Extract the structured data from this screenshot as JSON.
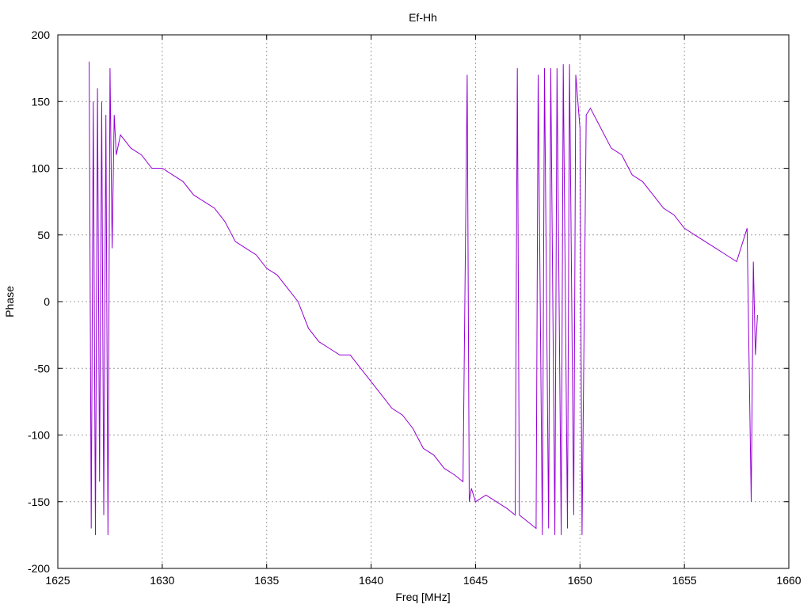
{
  "chart_data": {
    "type": "line",
    "title": "Ef-Hh",
    "xlabel": "Freq [MHz]",
    "ylabel": "Phase",
    "xlim": [
      1625,
      1660
    ],
    "ylim": [
      -200,
      200
    ],
    "xticks": [
      1625,
      1630,
      1635,
      1640,
      1645,
      1650,
      1655,
      1660
    ],
    "yticks": [
      -200,
      -150,
      -100,
      -50,
      0,
      50,
      100,
      150,
      200
    ],
    "grid": true,
    "legend": "none",
    "color": "#9400d3",
    "series": [
      {
        "x": [
          1626.5,
          1626.6,
          1626.7,
          1626.8,
          1626.9,
          1627.0,
          1627.1,
          1627.2,
          1627.3,
          1627.4,
          1627.5,
          1627.6,
          1627.7,
          1627.8,
          1628.0,
          1628.5,
          1629.0,
          1629.5,
          1630.0,
          1630.5,
          1631.0,
          1631.5,
          1632.0,
          1632.5,
          1633.0,
          1633.5,
          1634.0,
          1634.5,
          1635.0,
          1635.5,
          1636.0,
          1636.5,
          1637.0,
          1637.5,
          1638.0,
          1638.5,
          1639.0,
          1639.5,
          1640.0,
          1640.5,
          1641.0,
          1641.5,
          1642.0,
          1642.5,
          1643.0,
          1643.5,
          1644.0,
          1644.4,
          1644.6,
          1644.7,
          1644.8,
          1645.0,
          1645.5,
          1646.0,
          1646.5,
          1646.9,
          1647.0,
          1647.1,
          1647.5,
          1647.9,
          1648.0,
          1648.2,
          1648.3,
          1648.5,
          1648.6,
          1648.8,
          1648.9,
          1649.1,
          1649.2,
          1649.4,
          1649.5,
          1649.7,
          1649.8,
          1650.0,
          1650.1,
          1650.3,
          1650.5,
          1651.0,
          1651.5,
          1652.0,
          1652.5,
          1653.0,
          1653.5,
          1654.0,
          1654.5,
          1655.0,
          1655.5,
          1656.0,
          1656.5,
          1657.0,
          1657.5,
          1658.0,
          1658.2,
          1658.3,
          1658.4,
          1658.5
        ],
        "y": [
          180,
          -170,
          150,
          -175,
          160,
          -135,
          150,
          -160,
          140,
          -175,
          175,
          40,
          140,
          110,
          125,
          115,
          110,
          100,
          100,
          95,
          90,
          80,
          75,
          70,
          60,
          45,
          40,
          35,
          25,
          20,
          10,
          0,
          -20,
          -30,
          -35,
          -40,
          -40,
          -50,
          -60,
          -70,
          -80,
          -85,
          -95,
          -110,
          -115,
          -125,
          -130,
          -135,
          170,
          -150,
          -140,
          -150,
          -145,
          -150,
          -155,
          -160,
          175,
          -160,
          -165,
          -170,
          170,
          -175,
          175,
          -170,
          175,
          -175,
          175,
          -175,
          178,
          -170,
          178,
          -160,
          170,
          130,
          -175,
          140,
          145,
          130,
          115,
          110,
          95,
          90,
          80,
          70,
          65,
          55,
          50,
          45,
          40,
          35,
          30,
          55,
          -150,
          30,
          -40,
          -10
        ]
      }
    ]
  }
}
